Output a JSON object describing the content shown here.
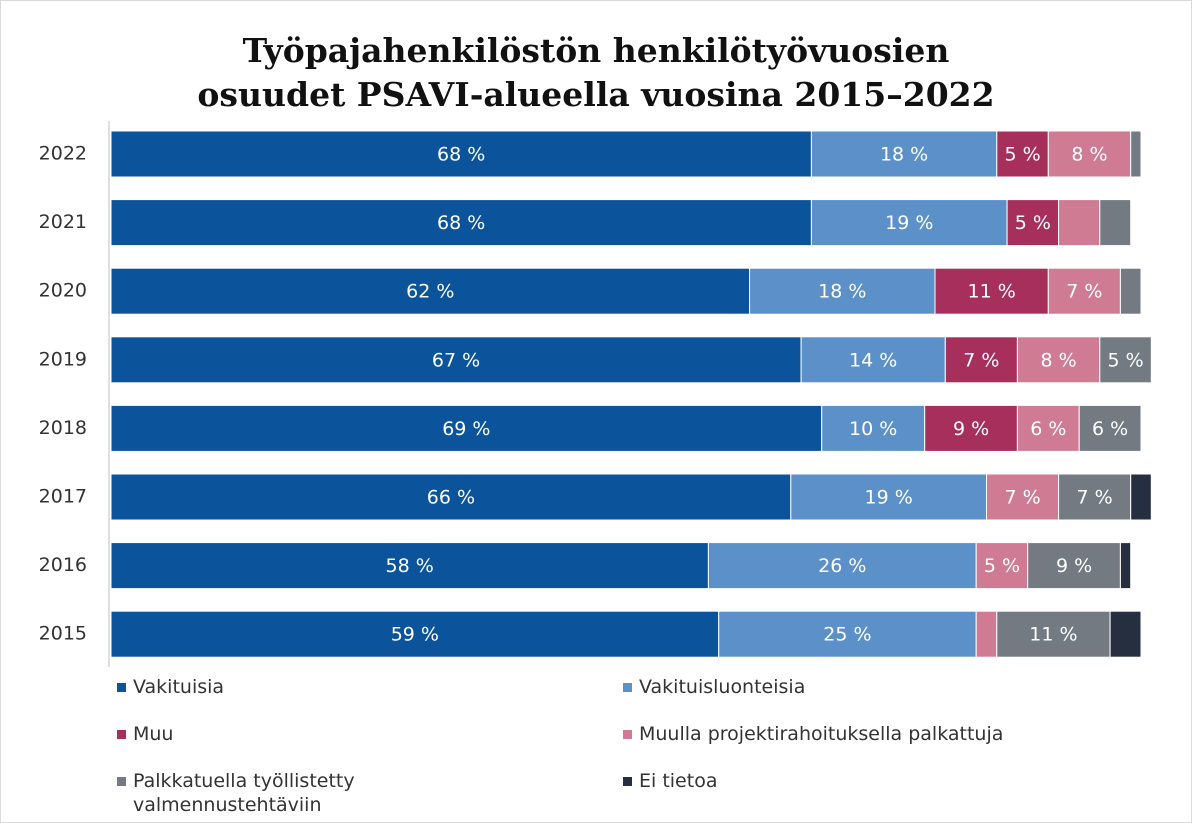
{
  "chart_data": {
    "type": "stacked-bar-horizontal",
    "title": "Työpajahenkilöstön henkilötyövuosien osuudet PSAVI-alueella vuosina 2015–2022",
    "categories": [
      "2022",
      "2021",
      "2020",
      "2019",
      "2018",
      "2017",
      "2016",
      "2015"
    ],
    "xlim": [
      0,
      100
    ],
    "series": [
      {
        "name": "Vakituisia",
        "color": "#0b539b",
        "values": [
          68,
          68,
          62,
          67,
          69,
          66,
          58,
          59
        ],
        "value_labels": [
          "68 %",
          "68 %",
          "62 %",
          "67 %",
          "69 %",
          "66 %",
          "58 %",
          "59 %"
        ]
      },
      {
        "name": "Vakituisluonteisia",
        "color": "#5b90c8",
        "values": [
          18,
          19,
          18,
          14,
          10,
          19,
          26,
          25
        ],
        "value_labels": [
          "18 %",
          "19 %",
          "18 %",
          "14 %",
          "10 %",
          "19 %",
          "26 %",
          "25 %"
        ]
      },
      {
        "name": "Muu",
        "color": "#a6305b",
        "values": [
          5,
          5,
          11,
          7,
          9,
          0,
          0,
          0
        ],
        "value_labels": [
          "5 %",
          "5 %",
          "11 %",
          "7 %",
          "9 %",
          null,
          null,
          null
        ]
      },
      {
        "name": "Muulla projektirahoituksella palkattuja",
        "color": "#ce7b93",
        "values": [
          8,
          4,
          7,
          8,
          6,
          7,
          5,
          2
        ],
        "value_labels": [
          "8 %",
          null,
          "7 %",
          "8 %",
          "6 %",
          "7 %",
          "5 %",
          null
        ]
      },
      {
        "name": "Palkkatuella työllistetty valmennustehtäviin",
        "color": "#737a82",
        "values": [
          1,
          3,
          2,
          5,
          6,
          7,
          9,
          11
        ],
        "value_labels": [
          null,
          null,
          null,
          "5 %",
          "6 %",
          "7 %",
          "9 %",
          "11 %"
        ]
      },
      {
        "name": "Ei tietoa",
        "color": "#252f3f",
        "values": [
          0,
          0,
          0,
          0,
          0,
          2,
          1,
          3
        ],
        "value_labels": [
          null,
          null,
          null,
          null,
          null,
          null,
          null,
          null
        ]
      }
    ]
  }
}
